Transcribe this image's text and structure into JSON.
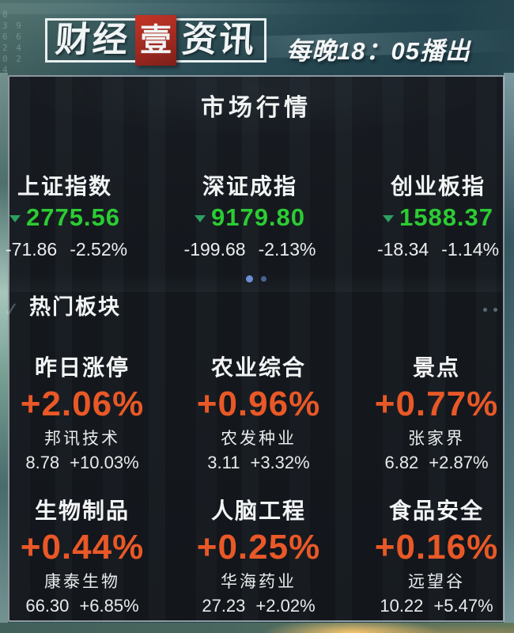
{
  "header": {
    "logo": {
      "part1": "财经",
      "highlight": "壹",
      "part2": "资讯"
    },
    "broadcast": "每晚18：05播出"
  },
  "decor": {
    "digits": "8\n3 9\n6 6\n2 4\n0 2\n4"
  },
  "icons": {
    "check": "✓",
    "down_triangle": "▼"
  },
  "market": {
    "title": "市场行情",
    "indices": [
      {
        "name": "上证指数",
        "value": "2775.56",
        "change": "-71.86",
        "change_pct": "-2.52%",
        "direction": "down"
      },
      {
        "name": "深证成指",
        "value": "9179.80",
        "change": "-199.68",
        "change_pct": "-2.13%",
        "direction": "down"
      },
      {
        "name": "创业板指",
        "value": "1588.37",
        "change": "-18.34",
        "change_pct": "-1.14%",
        "direction": "down"
      }
    ],
    "pagination": {
      "dots": 2,
      "active_index": 0
    }
  },
  "sectors": {
    "title": "热门板块",
    "items": [
      {
        "name": "昨日涨停",
        "change_pct": "+2.06%",
        "stock": "邦讯技术",
        "price": "8.78",
        "stock_pct": "+10.03%"
      },
      {
        "name": "农业综合",
        "change_pct": "+0.96%",
        "stock": "农发种业",
        "price": "3.11",
        "stock_pct": "+3.32%"
      },
      {
        "name": "景点",
        "change_pct": "+0.77%",
        "stock": "张家界",
        "price": "6.82",
        "stock_pct": "+2.87%"
      },
      {
        "name": "生物制品",
        "change_pct": "+0.44%",
        "stock": "康泰生物",
        "price": "66.30",
        "stock_pct": "+6.85%"
      },
      {
        "name": "人脑工程",
        "change_pct": "+0.25%",
        "stock": "华海药业",
        "price": "27.23",
        "stock_pct": "+2.02%"
      },
      {
        "name": "食品安全",
        "change_pct": "+0.16%",
        "stock": "远望谷",
        "price": "10.22",
        "stock_pct": "+5.47%"
      }
    ]
  },
  "colors": {
    "index_value_green": "#2ccc33",
    "triangle_green": "#2f9e62",
    "sector_pct_orange": "#e95827",
    "logo_red": "#b02a26",
    "dot_active": "#6d8ed6",
    "dot_inactive": "#4a6390",
    "panel_bg": "#14181d"
  }
}
